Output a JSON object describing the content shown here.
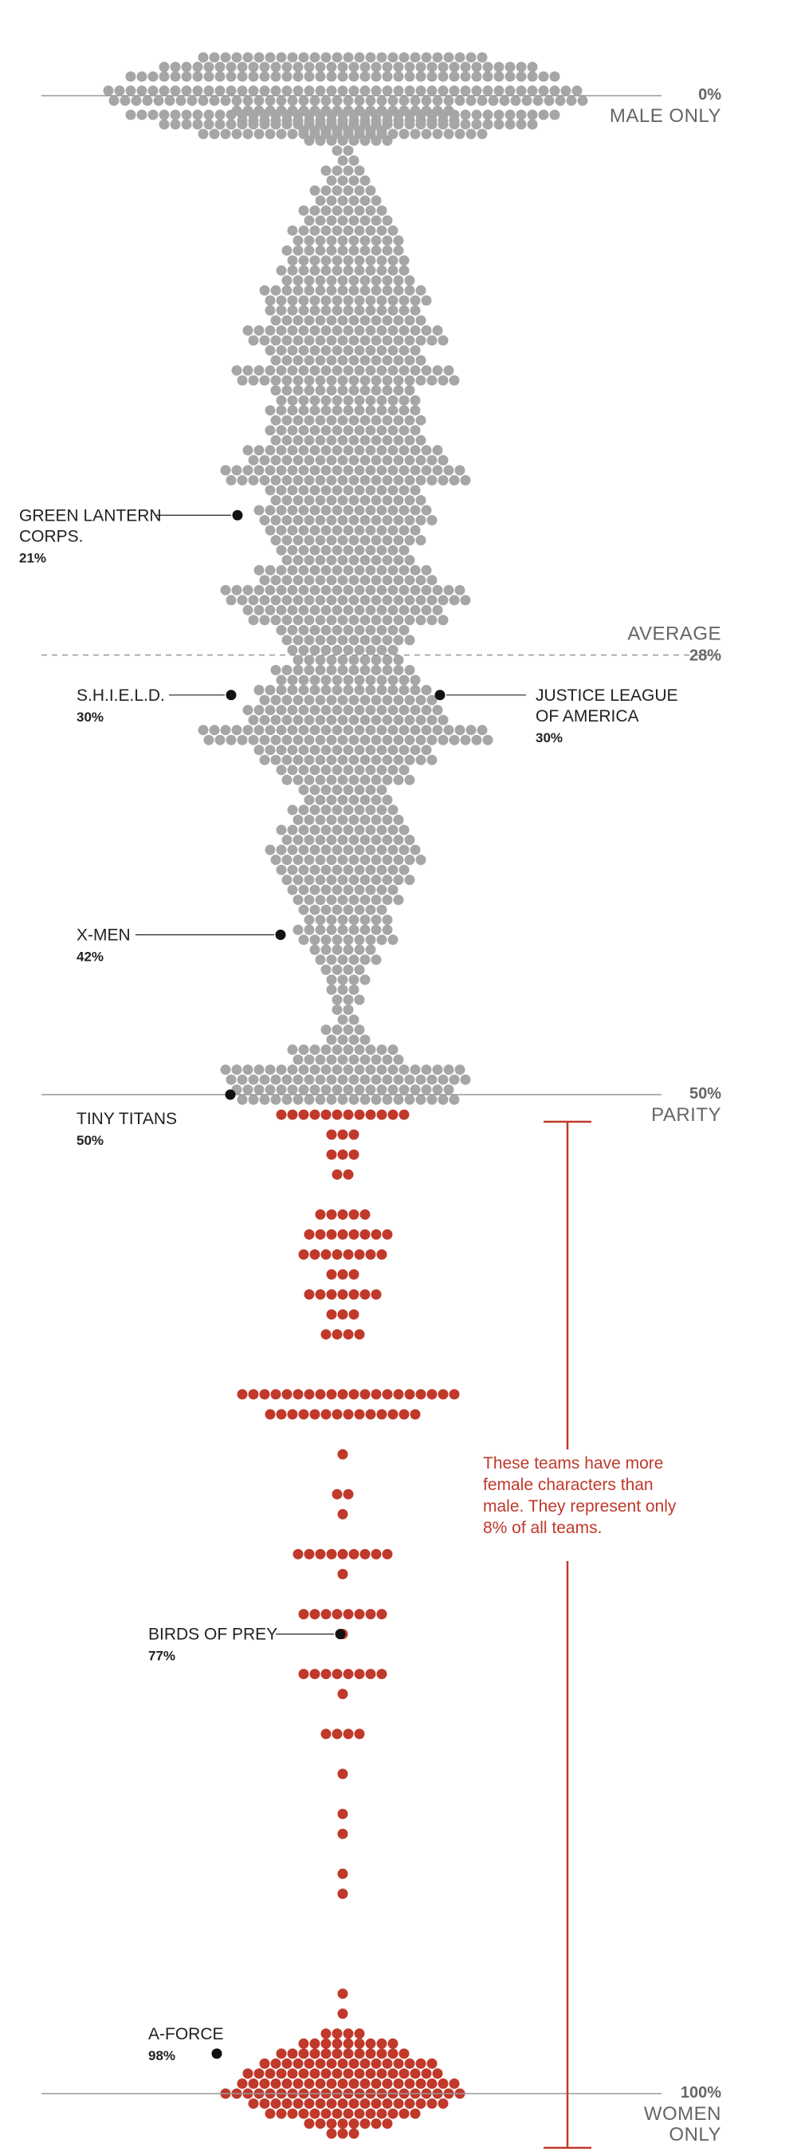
{
  "chart_data": {
    "type": "beeswarm",
    "title": "",
    "subtitle": "",
    "ylabel": "",
    "xlabel": "",
    "y_axis_scale": "share of female characters on team (%)",
    "ylim": [
      0,
      100
    ],
    "grid": false,
    "legend": "none",
    "colors": {
      "male_majority": "#a6a6a6",
      "female_majority": "#c0392b",
      "highlight": "#111111",
      "rule": "#999999"
    },
    "reference_lines": [
      {
        "value": 0,
        "pct_label": "0%",
        "name_label": "MALE ONLY",
        "style": "solid"
      },
      {
        "value": 28,
        "pct_label": "28%",
        "name_label": "AVERAGE",
        "style": "dashed"
      },
      {
        "value": 50,
        "pct_label": "50%",
        "name_label": "PARITY",
        "style": "solid"
      },
      {
        "value": 100,
        "pct_label": "100%",
        "name_label": "WOMEN ONLY",
        "style": "solid"
      }
    ],
    "distribution_profile_male_majority": [
      [
        0,
        43
      ],
      [
        1,
        20
      ],
      [
        2,
        8
      ],
      [
        3,
        2
      ],
      [
        4,
        4
      ],
      [
        5,
        6
      ],
      [
        6,
        8
      ],
      [
        7,
        10
      ],
      [
        8,
        11
      ],
      [
        9,
        12
      ],
      [
        10,
        15
      ],
      [
        11,
        14
      ],
      [
        12,
        18
      ],
      [
        13,
        14
      ],
      [
        14,
        20
      ],
      [
        15,
        13
      ],
      [
        16,
        14
      ],
      [
        17,
        14
      ],
      [
        18,
        18
      ],
      [
        19,
        22
      ],
      [
        20,
        14
      ],
      [
        21,
        16
      ],
      [
        22,
        14
      ],
      [
        23,
        12
      ],
      [
        24,
        16
      ],
      [
        25,
        22
      ],
      [
        26,
        18
      ],
      [
        27,
        12
      ],
      [
        28,
        10
      ],
      [
        29,
        13
      ],
      [
        30,
        16
      ],
      [
        31,
        18
      ],
      [
        32,
        26
      ],
      [
        33,
        16
      ],
      [
        34,
        12
      ],
      [
        35,
        8
      ],
      [
        36,
        10
      ],
      [
        37,
        12
      ],
      [
        38,
        14
      ],
      [
        39,
        12
      ],
      [
        40,
        10
      ],
      [
        41,
        8
      ],
      [
        42,
        9
      ],
      [
        43,
        6
      ],
      [
        44,
        4
      ],
      [
        45,
        3
      ],
      [
        46,
        2
      ],
      [
        47,
        4
      ],
      [
        48,
        10
      ],
      [
        49,
        22
      ],
      [
        50,
        20
      ]
    ],
    "distribution_rows_female_majority": [
      [
        51,
        12
      ],
      [
        52,
        3
      ],
      [
        53,
        3
      ],
      [
        54,
        2
      ],
      [
        56,
        5
      ],
      [
        57,
        8
      ],
      [
        58,
        8
      ],
      [
        59,
        3
      ],
      [
        60,
        7
      ],
      [
        61,
        3
      ],
      [
        62,
        4
      ],
      [
        65,
        20
      ],
      [
        66,
        14
      ],
      [
        68,
        1
      ],
      [
        70,
        2
      ],
      [
        71,
        1
      ],
      [
        73,
        9
      ],
      [
        74,
        1
      ],
      [
        76,
        8
      ],
      [
        77,
        1
      ],
      [
        79,
        8
      ],
      [
        80,
        1
      ],
      [
        82,
        4
      ],
      [
        84,
        1
      ],
      [
        86,
        1
      ],
      [
        87,
        1
      ],
      [
        89,
        1
      ],
      [
        90,
        1
      ],
      [
        95,
        1
      ],
      [
        96,
        1
      ],
      [
        97,
        4
      ],
      [
        97.5,
        9
      ],
      [
        98,
        12
      ],
      [
        98.5,
        16
      ],
      [
        99,
        18
      ],
      [
        99.5,
        20
      ],
      [
        100,
        22
      ],
      [
        100.5,
        18
      ],
      [
        101,
        14
      ],
      [
        101.5,
        8
      ],
      [
        102,
        3
      ]
    ],
    "annotations": [
      {
        "team": "GREEN LANTERN CORPS.",
        "label": "GREEN LANTERN\nCORPS.",
        "value": 21,
        "pct_label": "21%"
      },
      {
        "team": "S.H.I.E.L.D.",
        "label": "S.H.I.E.L.D.",
        "value": 30,
        "pct_label": "30%"
      },
      {
        "team": "JUSTICE LEAGUE OF AMERICA",
        "label": "JUSTICE LEAGUE\nOF AMERICA",
        "value": 30,
        "pct_label": "30%"
      },
      {
        "team": "X-MEN",
        "label": "X-MEN",
        "value": 42,
        "pct_label": "42%"
      },
      {
        "team": "TINY TITANS",
        "label": "TINY TITANS",
        "value": 50,
        "pct_label": "50%"
      },
      {
        "team": "BIRDS OF PREY",
        "label": "BIRDS OF PREY",
        "value": 77,
        "pct_label": "77%"
      },
      {
        "team": "A-FORCE",
        "label": "A-FORCE",
        "value": 98,
        "pct_label": "98%"
      }
    ],
    "bracket_note": "These teams have more\nfemale characters than\nmale. They represent only\n8% of all teams."
  }
}
